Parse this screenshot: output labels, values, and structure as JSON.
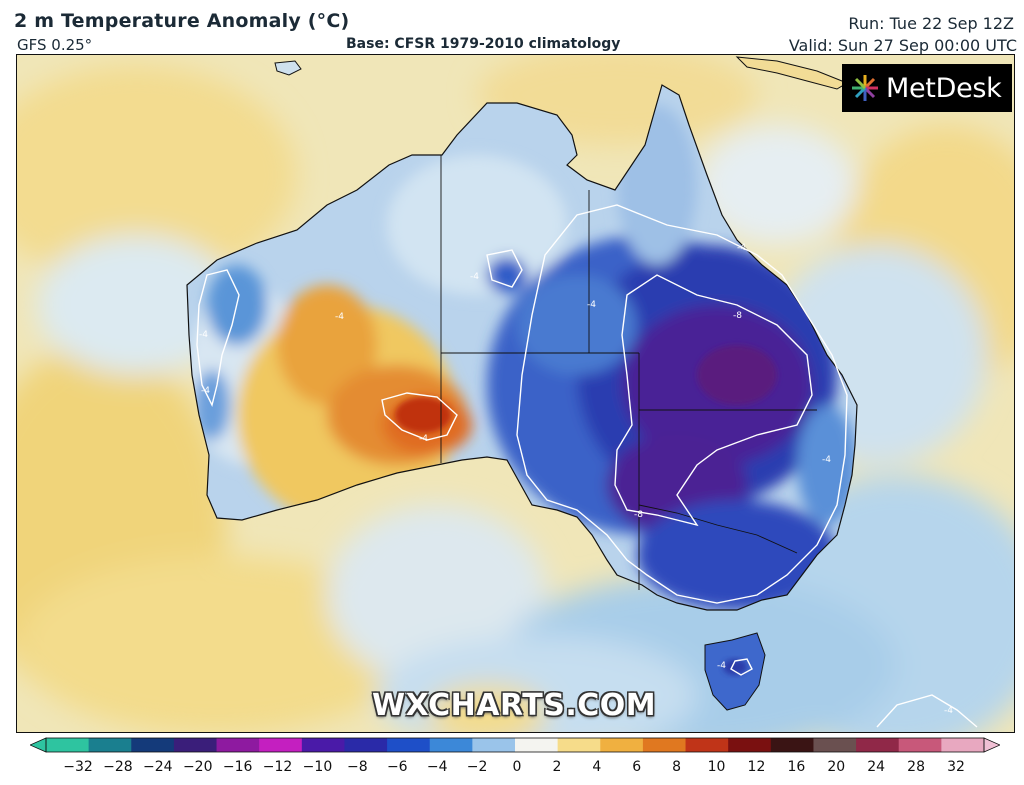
{
  "header": {
    "title": "2 m Temperature Anomaly (°C)",
    "model": "GFS 0.25°",
    "base": "Base: CFSR 1979-2010 climatology",
    "run": "Run: Tue 22 Sep 12Z",
    "valid": "Valid: Sun 27 Sep 00:00 UTC"
  },
  "logo": {
    "text": "MetDesk",
    "icon": "metdesk-starburst-icon"
  },
  "watermark": "WXCHARTS.COM",
  "contour_labels": [
    "-4",
    "-8"
  ],
  "colorbar": {
    "ticks": [
      "−32",
      "−28",
      "−24",
      "−20",
      "−16",
      "−12",
      "−10",
      "−8",
      "−6",
      "−4",
      "−2",
      "0",
      "2",
      "4",
      "6",
      "8",
      "10",
      "12",
      "16",
      "20",
      "24",
      "28",
      "32"
    ],
    "colors": [
      "#2ec4a0",
      "#1a7f8f",
      "#143a7a",
      "#3a1e7a",
      "#8e1aa0",
      "#c41fc0",
      "#4a1aa8",
      "#2a2aa8",
      "#1e4fc8",
      "#3c88d8",
      "#9ac4ea",
      "#f4f4f0",
      "#f6dc8a",
      "#f0b040",
      "#e07820",
      "#c03418",
      "#7a1010",
      "#3a1414",
      "#6a5050",
      "#902848",
      "#c8587a",
      "#e8a8c0"
    ]
  },
  "map_colors": {
    "ocean_warm": "#f3e1a0",
    "ocean_pale": "#eaf1f4",
    "ocean_blue": "#aecfe8",
    "cold_mid": "#4a8ad8",
    "cold_deep": "#2438b0",
    "cold_purple": "#5a1a8a",
    "warm_orange": "#e8a030",
    "warm_red": "#c03010"
  }
}
